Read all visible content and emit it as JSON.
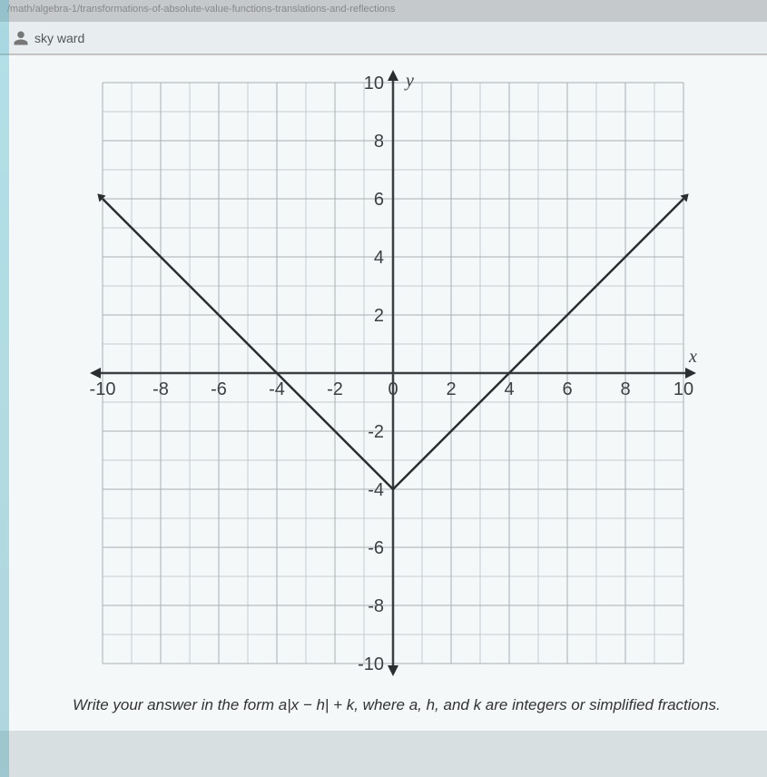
{
  "url_fragment": "/math/algebra-1/transformations-of-absolute-value-functions-translations-and-reflections",
  "header": {
    "icon_name": "user-icon",
    "user_name": "sky ward"
  },
  "chart": {
    "type": "line",
    "x_axis_label": "x",
    "y_axis_label": "y",
    "xlim": [
      -10,
      10
    ],
    "ylim": [
      -10,
      10
    ],
    "major_step": 2,
    "minor_step": 1,
    "xtick_labels": [
      "-10",
      "-8",
      "-6",
      "-4",
      "-2",
      "0",
      "2",
      "4",
      "6",
      "8",
      "10"
    ],
    "ytick_labels_pos": [
      "2",
      "4",
      "6",
      "8",
      "10"
    ],
    "ytick_labels_neg": [
      "-2",
      "-4",
      "-6",
      "-8",
      "-10"
    ],
    "background_color": "#f5f8f9",
    "grid_color_minor": "#c5cbce",
    "grid_color_major": "#a8b0b4",
    "axis_color": "#3a3f42",
    "curve_color": "#2a2e30",
    "curve": {
      "vertex": [
        0,
        -4
      ],
      "slope": 1,
      "endpoints": [
        [
          -10,
          6
        ],
        [
          10,
          6
        ]
      ]
    }
  },
  "instruction_text": "Write your answer in the form a|x − h| + k, where a, h, and k are integers or simplified fractions."
}
